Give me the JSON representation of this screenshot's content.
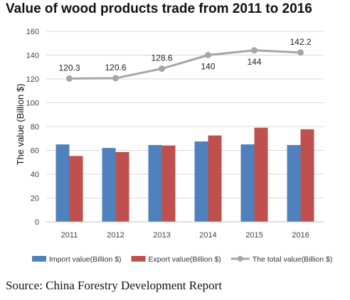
{
  "chart_data": {
    "type": "bar",
    "title": "Value of wood products trade from 2011 to 2016",
    "ylabel": "The value (Billion $)",
    "xlabel": "",
    "categories": [
      "2011",
      "2012",
      "2013",
      "2014",
      "2015",
      "2016"
    ],
    "ylim": [
      0,
      160
    ],
    "yticks": [
      0,
      20,
      40,
      60,
      80,
      100,
      120,
      140,
      160
    ],
    "grid": true,
    "legend_position": "bottom",
    "series": [
      {
        "name": "Import value(Billion $)",
        "type": "bar",
        "color": "#4f81bd",
        "values": [
          65,
          62,
          64.5,
          67.5,
          65,
          64.5
        ]
      },
      {
        "name": "Export value(Billion $)",
        "type": "bar",
        "color": "#c0504d",
        "values": [
          55.3,
          58.6,
          64.1,
          72.5,
          79,
          77.7
        ]
      },
      {
        "name": "The total value(Billion $)",
        "type": "line",
        "color": "#a6a6a6",
        "values": [
          120.3,
          120.6,
          128.6,
          140,
          144,
          142.2
        ],
        "labels": [
          "120.3",
          "120.6",
          "128.6",
          "140",
          "144",
          "142.2"
        ]
      }
    ],
    "source": "Source: China Forestry Development Report"
  }
}
